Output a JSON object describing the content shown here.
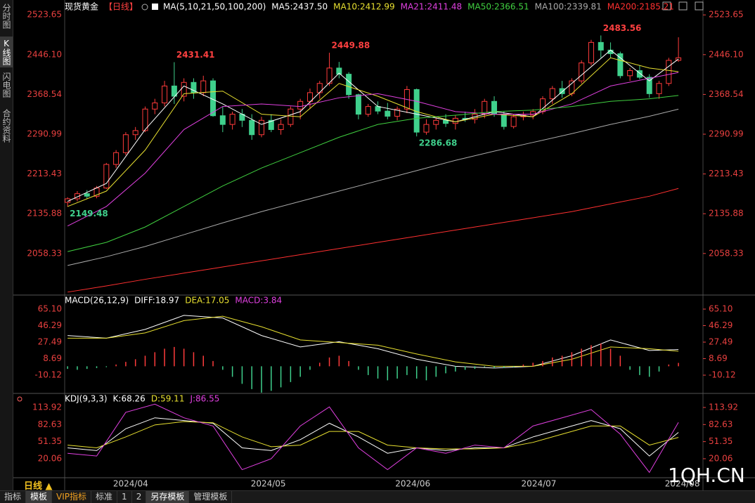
{
  "ui": {
    "sidebar": [
      "分时图",
      "K线图",
      "闪电图",
      "合约资料"
    ],
    "period_tab": "日线",
    "toolbar": [
      "指标",
      "模板",
      "VIP指标",
      "标准",
      "1",
      "2",
      "另存模板",
      "管理模板"
    ],
    "watermark": "1QH.CN"
  },
  "chart_data": [
    {
      "type": "candlestick",
      "title": "现货黄金",
      "subtitle": "【日线】",
      "subtitle_color": "#ff4040",
      "indicator": "MA(5,10,21,50,100,200)",
      "x": [
        0,
        1,
        2,
        3,
        4,
        5,
        6,
        7,
        8,
        9,
        10,
        11,
        12,
        13,
        14,
        15,
        16,
        17,
        18,
        19,
        20,
        21,
        22,
        23,
        24,
        25,
        26,
        27,
        28,
        29,
        30,
        31,
        32,
        33,
        34,
        35,
        36,
        37,
        38,
        39,
        40,
        41,
        42,
        43,
        44,
        45,
        46,
        47,
        48,
        49,
        50,
        51,
        52,
        53,
        54,
        55,
        56,
        57,
        58,
        59,
        60,
        61,
        62,
        63
      ],
      "xlim": [
        -0.3,
        63.5
      ],
      "ylim": [
        1980,
        2539
      ],
      "yticks": [
        2523.65,
        {
          "value": 2446.1,
          "label": "2446.10"
        },
        2368.54,
        2290.99,
        2213.43,
        2135.88,
        2058.33
      ],
      "up_color": "#ff3b3b",
      "down_color": "#3fd08c",
      "open": [
        2158,
        2165,
        2175,
        2170,
        2186,
        2232,
        2255,
        2290,
        2298,
        2340,
        2352,
        2385,
        2365,
        2392,
        2372,
        2395,
        2327,
        2310,
        2330,
        2318,
        2290,
        2318,
        2300,
        2310,
        2340,
        2355,
        2372,
        2390,
        2420,
        2408,
        2368,
        2330,
        2345,
        2336,
        2326,
        2340,
        2378,
        2295,
        2310,
        2318,
        2312,
        2322,
        2320,
        2330,
        2355,
        2330,
        2306,
        2325,
        2328,
        2335,
        2360,
        2380,
        2370,
        2395,
        2430,
        2470,
        2455,
        2448,
        2405,
        2415,
        2402,
        2370,
        2390,
        2435
      ],
      "high": [
        2168,
        2180,
        2182,
        2190,
        2235,
        2260,
        2295,
        2305,
        2345,
        2360,
        2395,
        2431.41,
        2400,
        2400,
        2405,
        2400,
        2345,
        2335,
        2340,
        2330,
        2325,
        2330,
        2320,
        2345,
        2360,
        2380,
        2395,
        2449.88,
        2432,
        2412,
        2370,
        2350,
        2355,
        2352,
        2345,
        2385,
        2380,
        2320,
        2325,
        2330,
        2328,
        2335,
        2340,
        2360,
        2365,
        2335,
        2330,
        2335,
        2340,
        2365,
        2385,
        2395,
        2400,
        2435,
        2475,
        2483.56,
        2470,
        2452,
        2420,
        2425,
        2408,
        2395,
        2440,
        2480
      ],
      "low": [
        2149.48,
        2160,
        2165,
        2166,
        2184,
        2225,
        2250,
        2280,
        2295,
        2330,
        2345,
        2350,
        2355,
        2360,
        2365,
        2325,
        2295,
        2300,
        2305,
        2280,
        2285,
        2295,
        2290,
        2305,
        2320,
        2340,
        2360,
        2385,
        2400,
        2360,
        2320,
        2325,
        2330,
        2320,
        2318,
        2332,
        2286.68,
        2290,
        2300,
        2305,
        2300,
        2315,
        2312,
        2322,
        2325,
        2300,
        2302,
        2318,
        2320,
        2330,
        2350,
        2362,
        2365,
        2390,
        2425,
        2440,
        2440,
        2400,
        2395,
        2398,
        2362,
        2360,
        2385,
        2432
      ],
      "close": [
        2165,
        2175,
        2170,
        2186,
        2232,
        2255,
        2290,
        2298,
        2340,
        2352,
        2385,
        2365,
        2392,
        2372,
        2395,
        2327,
        2310,
        2330,
        2318,
        2290,
        2318,
        2300,
        2310,
        2340,
        2355,
        2372,
        2390,
        2420,
        2408,
        2368,
        2330,
        2345,
        2336,
        2326,
        2340,
        2378,
        2295,
        2310,
        2318,
        2312,
        2322,
        2320,
        2330,
        2355,
        2330,
        2306,
        2325,
        2328,
        2335,
        2360,
        2380,
        2370,
        2395,
        2430,
        2470,
        2455,
        2448,
        2405,
        2415,
        2402,
        2370,
        2390,
        2435,
        2440
      ],
      "series": [
        {
          "name": "MA5:2437.50",
          "color": "#ffffff",
          "x": [
            0,
            4,
            8,
            12,
            16,
            20,
            24,
            28,
            32,
            36,
            40,
            44,
            48,
            52,
            56,
            60,
            63
          ],
          "values": [
            2160,
            2195,
            2300,
            2385,
            2350,
            2310,
            2335,
            2410,
            2345,
            2330,
            2315,
            2335,
            2325,
            2390,
            2455,
            2395,
            2437.5
          ]
        },
        {
          "name": "MA10:2412.99",
          "color": "#e8e030",
          "x": [
            0,
            4,
            8,
            12,
            16,
            20,
            24,
            28,
            32,
            36,
            40,
            44,
            48,
            52,
            56,
            60,
            63
          ],
          "values": [
            2150,
            2180,
            2260,
            2370,
            2375,
            2330,
            2325,
            2390,
            2365,
            2335,
            2315,
            2330,
            2325,
            2370,
            2440,
            2420,
            2412.99
          ]
        },
        {
          "name": "MA21:2411.48",
          "color": "#e040e0",
          "x": [
            0,
            4,
            8,
            12,
            16,
            20,
            24,
            28,
            32,
            36,
            40,
            44,
            48,
            52,
            56,
            60,
            63
          ],
          "values": [
            2112,
            2150,
            2215,
            2300,
            2345,
            2350,
            2345,
            2362,
            2370,
            2355,
            2335,
            2330,
            2330,
            2350,
            2385,
            2400,
            2411.48
          ]
        },
        {
          "name": "MA50:2366.51",
          "color": "#40d040",
          "x": [
            0,
            4,
            8,
            12,
            16,
            20,
            24,
            28,
            32,
            36,
            40,
            44,
            48,
            52,
            56,
            60,
            63
          ],
          "values": [
            2062,
            2080,
            2110,
            2150,
            2190,
            2225,
            2255,
            2285,
            2310,
            2322,
            2328,
            2335,
            2338,
            2345,
            2355,
            2360,
            2366.51
          ]
        },
        {
          "name": "MA100:2339.81",
          "color": "#aaaaaa",
          "x": [
            0,
            4,
            8,
            12,
            16,
            20,
            24,
            28,
            32,
            36,
            40,
            44,
            48,
            52,
            56,
            60,
            63
          ],
          "values": [
            2035,
            2052,
            2072,
            2095,
            2118,
            2140,
            2160,
            2180,
            2200,
            2220,
            2240,
            2258,
            2275,
            2292,
            2310,
            2326,
            2339.81
          ]
        },
        {
          "name": "MA200:2185.21",
          "color": "#ff3030",
          "x": [
            0,
            4,
            8,
            12,
            16,
            20,
            24,
            28,
            32,
            36,
            40,
            44,
            48,
            52,
            56,
            60,
            63
          ],
          "values": [
            1983,
            1995,
            2008,
            2020,
            2032,
            2044,
            2056,
            2068,
            2080,
            2092,
            2104,
            2116,
            2128,
            2140,
            2155,
            2170,
            2185.21
          ]
        }
      ],
      "annotations": [
        {
          "text": "2149.48",
          "x": 0,
          "y": 2149.48,
          "color": "#3fd08c"
        },
        {
          "text": "2431.41",
          "x": 11,
          "y": 2431.41,
          "color": "#ff4040"
        },
        {
          "text": "2449.88",
          "x": 27,
          "y": 2449.88,
          "color": "#ff4040"
        },
        {
          "text": "2286.68",
          "x": 36,
          "y": 2286.68,
          "color": "#3fd08c"
        },
        {
          "text": "2483.56",
          "x": 55,
          "y": 2483.56,
          "color": "#ff4040"
        }
      ]
    },
    {
      "type": "line",
      "title": "MACD(26,12,9)",
      "x": [
        0,
        1,
        2,
        3,
        4,
        5,
        6,
        7,
        8,
        9,
        10,
        11,
        12,
        13,
        14,
        15,
        16,
        17,
        18,
        19,
        20,
        21,
        22,
        23,
        24,
        25,
        26,
        27,
        28,
        29,
        30,
        31,
        32,
        33,
        34,
        35,
        36,
        37,
        38,
        39,
        40,
        41,
        42,
        43,
        44,
        45,
        46,
        47,
        48,
        49,
        50,
        51,
        52,
        53,
        54,
        55,
        56,
        57,
        58,
        59,
        60,
        61,
        62,
        63
      ],
      "xlim": [
        -0.3,
        63.5
      ],
      "ylim": [
        -28.5,
        78.7
      ],
      "yticks": [
        {
          "value": 65.1,
          "label": "65.10"
        },
        46.29,
        27.49,
        8.69,
        -10.12
      ],
      "series": [
        {
          "name": "DIFF:18.97",
          "color": "#ffffff",
          "x": [
            0,
            4,
            8,
            12,
            16,
            20,
            24,
            28,
            32,
            36,
            40,
            44,
            48,
            52,
            56,
            60,
            63
          ],
          "values": [
            35,
            32,
            42,
            58,
            55,
            35,
            22,
            28,
            20,
            8,
            0,
            -2,
            0,
            12,
            30,
            18,
            18.97
          ]
        },
        {
          "name": "DEA:17.05",
          "color": "#e8e030",
          "x": [
            0,
            4,
            8,
            12,
            16,
            20,
            24,
            28,
            32,
            36,
            40,
            44,
            48,
            52,
            56,
            60,
            63
          ],
          "values": [
            32,
            32,
            38,
            52,
            57,
            45,
            30,
            27,
            24,
            14,
            5,
            0,
            0,
            8,
            22,
            20,
            17.05
          ]
        },
        {
          "name": "MACD:3.84",
          "kind": "bar",
          "color": "#e040e0",
          "up_color": "#ff3b3b",
          "down_color": "#3fd08c",
          "values": [
            -3,
            -4,
            -3,
            -2,
            -1,
            2,
            5,
            8,
            12,
            16,
            20,
            22,
            20,
            16,
            12,
            6,
            -4,
            -12,
            -20,
            -26,
            -30,
            -28,
            -24,
            -18,
            -12,
            -4,
            4,
            10,
            12,
            6,
            -4,
            -10,
            -14,
            -16,
            -14,
            -10,
            -14,
            -16,
            -12,
            -8,
            -6,
            -4,
            -3,
            -1,
            -2,
            -2,
            -1,
            2,
            4,
            6,
            10,
            12,
            16,
            20,
            24,
            26,
            20,
            12,
            -4,
            -10,
            -12,
            -6,
            2,
            3.84
          ]
        }
      ]
    },
    {
      "type": "line",
      "title": "KDJ(9,3,3)",
      "x": [
        0,
        3,
        6,
        9,
        12,
        15,
        18,
        21,
        24,
        27,
        30,
        33,
        36,
        39,
        42,
        45,
        48,
        51,
        54,
        57,
        60,
        63
      ],
      "xlim": [
        -0.3,
        63.5
      ],
      "ylim": [
        -17.3,
        135.8
      ],
      "yticks": [
        113.92,
        82.63,
        51.35,
        20.06
      ],
      "xticks": [
        {
          "value": 6.5,
          "label": "2024/04"
        },
        {
          "value": 20.7,
          "label": "2024/05"
        },
        {
          "value": 35.6,
          "label": "2024/06"
        },
        {
          "value": 48.6,
          "label": "2024/07"
        },
        {
          "value": 63.4,
          "label": "2024/08"
        }
      ],
      "series": [
        {
          "name": "K:68.26",
          "color": "#ffffff",
          "values": [
            40,
            35,
            75,
            95,
            90,
            85,
            40,
            35,
            55,
            85,
            60,
            30,
            40,
            35,
            40,
            40,
            60,
            75,
            90,
            75,
            25,
            68.26
          ]
        },
        {
          "name": "D:59.11",
          "color": "#e8e030",
          "values": [
            45,
            40,
            60,
            82,
            88,
            86,
            60,
            42,
            45,
            70,
            70,
            45,
            40,
            38,
            38,
            40,
            50,
            65,
            80,
            80,
            45,
            59.11
          ]
        },
        {
          "name": "J:86.55",
          "color": "#e040e0",
          "values": [
            30,
            25,
            105,
            120,
            95,
            80,
            0,
            20,
            80,
            115,
            40,
            0,
            40,
            30,
            45,
            40,
            80,
            95,
            110,
            65,
            -5,
            86.55
          ]
        }
      ]
    }
  ]
}
